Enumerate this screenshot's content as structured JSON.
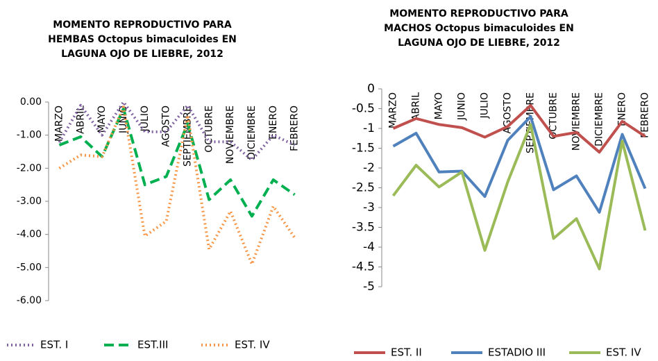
{
  "chart_data": [
    {
      "type": "line",
      "title": [
        "MOMENTO REPRODUCTIVO PARA",
        "HEMBAS Octopus bimaculoides EN",
        "LAGUNA OJO DE LIEBRE, 2012"
      ],
      "categories": [
        "MARZO",
        "ABRIL",
        "MAYO",
        "JUNIO",
        "JULIO",
        "AGOSTO",
        "SEPTIEMBRE",
        "OCTUBRE",
        "NOVIEMBRE",
        "DICIEMBRE",
        "ENERO",
        "FEBRERO"
      ],
      "ylim": [
        -6,
        0
      ],
      "yticks": [
        {
          "value": 0,
          "label": "0.00"
        },
        {
          "value": -1,
          "label": "-1.00"
        },
        {
          "value": -2,
          "label": "-2.00"
        },
        {
          "value": -3,
          "label": "-3.00"
        },
        {
          "value": -4,
          "label": "-4.00"
        },
        {
          "value": -5,
          "label": "-5.00"
        },
        {
          "value": -6,
          "label": "-6.00"
        }
      ],
      "series": [
        {
          "name": "EST. I",
          "color": "#8064a2",
          "dash": "dotted",
          "values": [
            -1.22,
            -0.1,
            -1.0,
            0.0,
            -0.9,
            -0.9,
            -0.1,
            -1.2,
            -1.2,
            -1.75,
            -1.0,
            -1.3
          ]
        },
        {
          "name": "EST.III",
          "color": "#00b050",
          "dash": "dashed",
          "values": [
            -1.3,
            -1.05,
            -1.65,
            -0.2,
            -2.5,
            -2.25,
            -0.65,
            -2.95,
            -2.35,
            -3.45,
            -2.35,
            -2.8
          ]
        },
        {
          "name": "EST. IV",
          "color": "#f79646",
          "dash": "dotted",
          "values": [
            -2.0,
            -1.6,
            -1.65,
            -0.15,
            -4.05,
            -3.6,
            -0.4,
            -4.45,
            -3.3,
            -4.9,
            -3.15,
            -4.1
          ]
        }
      ]
    },
    {
      "type": "line",
      "title": [
        "MOMENTO REPRODUCTIVO PARA",
        "MACHOS  Octopus bimaculoides EN",
        "LAGUNA OJO DE LIEBRE, 2012"
      ],
      "categories": [
        "MARZO",
        "ABRIL",
        "MAYO",
        "JUNIO",
        "JULIO",
        "AGOSTO",
        "SEPTIEMBRE",
        "OCTUBRE",
        "NOVIEMBRE",
        "DICIEMBRE",
        "ENERO",
        "FEBRERO"
      ],
      "ylim": [
        -5,
        0
      ],
      "yticks": [
        0,
        -0.5,
        -1,
        -1.5,
        -2,
        -2.5,
        -3,
        -3.5,
        -4,
        -4.5,
        -5
      ],
      "series": [
        {
          "name": "EST. II",
          "color": "#c0504d",
          "dash": "solid",
          "values": [
            -1.0,
            -0.75,
            -0.9,
            -0.98,
            -1.22,
            -0.95,
            -0.42,
            -1.2,
            -1.1,
            -1.6,
            -0.82,
            -1.2
          ]
        },
        {
          "name": "ESTADIO III",
          "color": "#4f81bd",
          "dash": "solid",
          "values": [
            -1.45,
            -1.12,
            -2.1,
            -2.08,
            -2.72,
            -1.3,
            -0.7,
            -2.55,
            -2.2,
            -3.12,
            -1.15,
            -2.52
          ]
        },
        {
          "name": "EST. IV",
          "color": "#9bbb59",
          "dash": "solid",
          "values": [
            -2.7,
            -1.93,
            -2.48,
            -2.1,
            -4.08,
            -2.35,
            -0.9,
            -3.78,
            -3.28,
            -4.55,
            -1.32,
            -3.58
          ]
        }
      ]
    }
  ]
}
